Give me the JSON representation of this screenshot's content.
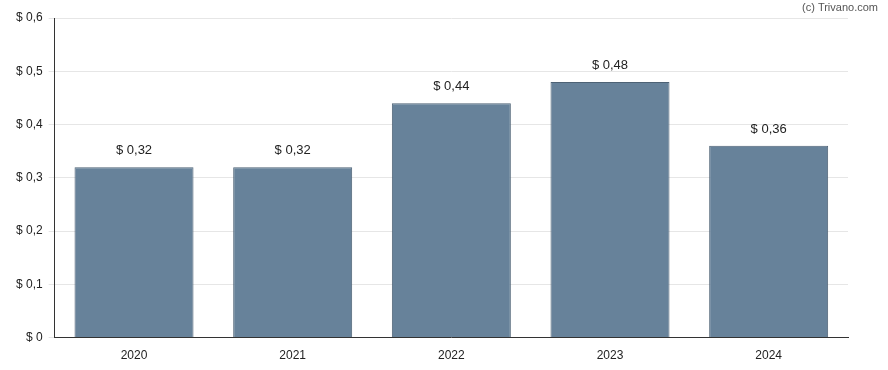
{
  "chart_data": {
    "type": "bar",
    "categories": [
      "2020",
      "2021",
      "2022",
      "2023",
      "2024"
    ],
    "values": [
      0.32,
      0.32,
      0.44,
      0.48,
      0.36
    ],
    "value_labels": [
      "$ 0,32",
      "$ 0,32",
      "$ 0,44",
      "$ 0,48",
      "$ 0,36"
    ],
    "data_labels": true,
    "color": "#67829a",
    "ylim": [
      0,
      0.6
    ],
    "yticks": [
      {
        "value": 0,
        "label": "$ 0"
      },
      {
        "value": 0.1,
        "label": "$ 0,1"
      },
      {
        "value": 0.2,
        "label": "$ 0,2"
      },
      {
        "value": 0.3,
        "label": "$ 0,3"
      },
      {
        "value": 0.4,
        "label": "$ 0,4"
      },
      {
        "value": 0.5,
        "label": "$ 0,5"
      },
      {
        "value": 0.6,
        "label": "$ 0,6"
      }
    ],
    "grid": true,
    "annotations": [
      "(c) Trivano.com"
    ]
  }
}
